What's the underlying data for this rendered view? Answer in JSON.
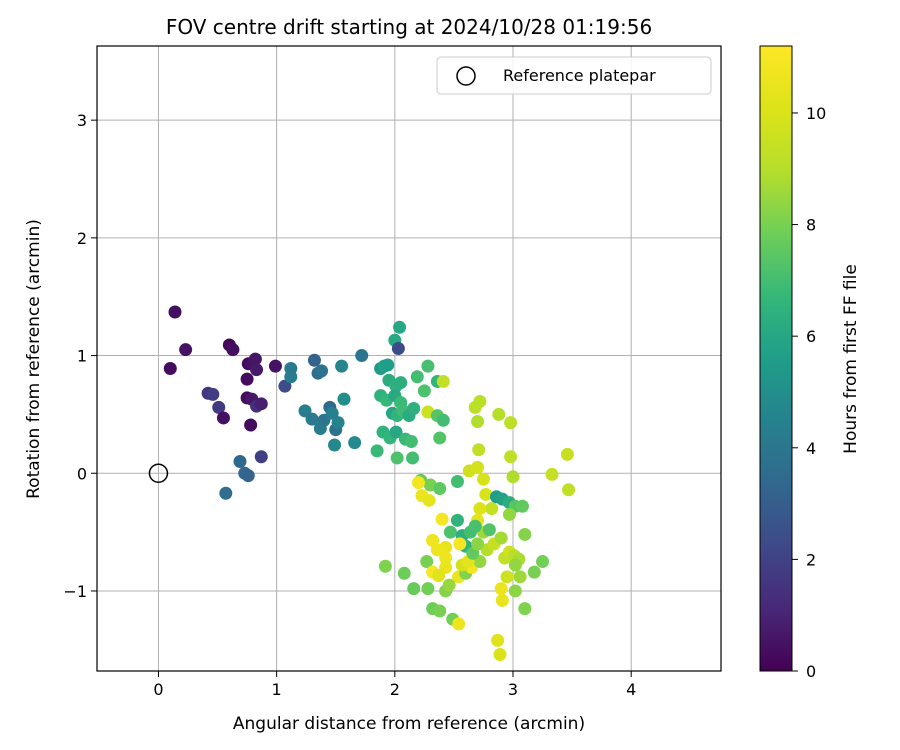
{
  "chart_data": {
    "type": "scatter",
    "title": "FOV centre drift starting at 2024/10/28 01:19:56",
    "xlabel": "Angular distance from reference (arcmin)",
    "ylabel": "Rotation from reference (arcmin)",
    "xlim": [
      -0.52,
      4.76
    ],
    "ylim": [
      -1.68,
      3.63
    ],
    "xticks": [
      0,
      1,
      2,
      3,
      4
    ],
    "xtick_labels": [
      "0",
      "1",
      "2",
      "3",
      "4"
    ],
    "yticks": [
      -1,
      0,
      1,
      2,
      3
    ],
    "ytick_labels": [
      "−1",
      "0",
      "1",
      "2",
      "3"
    ],
    "grid": true,
    "legend": {
      "position": "top-right",
      "entries": [
        "Reference platepar"
      ]
    },
    "colorbar": {
      "label": "Hours from first FF file",
      "colormap": "viridis",
      "range": [
        0,
        11.2
      ],
      "ticks": [
        0,
        2,
        4,
        6,
        8,
        10
      ],
      "tick_labels": [
        "0",
        "2",
        "4",
        "6",
        "8",
        "10"
      ]
    },
    "reference_point": {
      "x": 0,
      "y": 0
    },
    "points": [
      {
        "x": 0.14,
        "y": 1.37,
        "h": 0.4
      },
      {
        "x": 0.23,
        "y": 1.05,
        "h": 0.5
      },
      {
        "x": 0.1,
        "y": 0.89,
        "h": 0.3
      },
      {
        "x": 0.6,
        "y": 1.09,
        "h": 0.2
      },
      {
        "x": 0.63,
        "y": 1.05,
        "h": 0.4
      },
      {
        "x": 0.76,
        "y": 0.93,
        "h": 0.3
      },
      {
        "x": 0.8,
        "y": 0.93,
        "h": 0.5
      },
      {
        "x": 0.82,
        "y": 0.97,
        "h": 0.6
      },
      {
        "x": 0.83,
        "y": 0.88,
        "h": 0.7
      },
      {
        "x": 0.75,
        "y": 0.8,
        "h": 0.3
      },
      {
        "x": 0.99,
        "y": 0.91,
        "h": 0.5
      },
      {
        "x": 0.42,
        "y": 0.68,
        "h": 1.6
      },
      {
        "x": 0.46,
        "y": 0.67,
        "h": 1.8
      },
      {
        "x": 0.51,
        "y": 0.56,
        "h": 1.7
      },
      {
        "x": 0.55,
        "y": 0.47,
        "h": 0.4
      },
      {
        "x": 0.75,
        "y": 0.64,
        "h": 0.3
      },
      {
        "x": 0.79,
        "y": 0.63,
        "h": 0.6
      },
      {
        "x": 0.83,
        "y": 0.57,
        "h": 1.4
      },
      {
        "x": 0.87,
        "y": 0.59,
        "h": 0.9
      },
      {
        "x": 0.78,
        "y": 0.41,
        "h": 0.3
      },
      {
        "x": 0.87,
        "y": 0.14,
        "h": 1.9
      },
      {
        "x": 0.69,
        "y": 0.1,
        "h": 3.4
      },
      {
        "x": 0.73,
        "y": 0.0,
        "h": 3.3
      },
      {
        "x": 0.76,
        "y": -0.02,
        "h": 3.2
      },
      {
        "x": 0.57,
        "y": -0.17,
        "h": 3.6
      },
      {
        "x": 1.07,
        "y": 0.74,
        "h": 2.4
      },
      {
        "x": 1.12,
        "y": 0.89,
        "h": 4.1
      },
      {
        "x": 1.12,
        "y": 0.82,
        "h": 4.2
      },
      {
        "x": 1.32,
        "y": 0.96,
        "h": 3.2
      },
      {
        "x": 1.35,
        "y": 0.85,
        "h": 3.6
      },
      {
        "x": 1.38,
        "y": 0.87,
        "h": 3.8
      },
      {
        "x": 1.55,
        "y": 0.91,
        "h": 4.6
      },
      {
        "x": 1.72,
        "y": 1.0,
        "h": 3.9
      },
      {
        "x": 1.24,
        "y": 0.53,
        "h": 4.3
      },
      {
        "x": 1.3,
        "y": 0.46,
        "h": 4.1
      },
      {
        "x": 1.37,
        "y": 0.38,
        "h": 4.2
      },
      {
        "x": 1.4,
        "y": 0.45,
        "h": 3.9
      },
      {
        "x": 1.45,
        "y": 0.56,
        "h": 3.5
      },
      {
        "x": 1.47,
        "y": 0.51,
        "h": 4.4
      },
      {
        "x": 1.5,
        "y": 0.37,
        "h": 3.8
      },
      {
        "x": 1.52,
        "y": 0.43,
        "h": 4.5
      },
      {
        "x": 1.57,
        "y": 0.63,
        "h": 4.9
      },
      {
        "x": 1.49,
        "y": 0.24,
        "h": 4.7
      },
      {
        "x": 1.66,
        "y": 0.26,
        "h": 4.8
      },
      {
        "x": 1.88,
        "y": 0.89,
        "h": 5.4
      },
      {
        "x": 1.91,
        "y": 0.91,
        "h": 5.8
      },
      {
        "x": 1.94,
        "y": 0.92,
        "h": 5.6
      },
      {
        "x": 2.0,
        "y": 1.13,
        "h": 6.1
      },
      {
        "x": 2.04,
        "y": 1.24,
        "h": 6.0
      },
      {
        "x": 2.03,
        "y": 1.06,
        "h": 2.3
      },
      {
        "x": 1.95,
        "y": 0.79,
        "h": 6.2
      },
      {
        "x": 2.01,
        "y": 0.74,
        "h": 6.4
      },
      {
        "x": 2.05,
        "y": 0.77,
        "h": 6.3
      },
      {
        "x": 1.88,
        "y": 0.66,
        "h": 6.5
      },
      {
        "x": 1.93,
        "y": 0.62,
        "h": 6.7
      },
      {
        "x": 2.0,
        "y": 0.66,
        "h": 6.1
      },
      {
        "x": 2.05,
        "y": 0.6,
        "h": 6.8
      },
      {
        "x": 1.98,
        "y": 0.51,
        "h": 5.9
      },
      {
        "x": 2.02,
        "y": 0.49,
        "h": 6.6
      },
      {
        "x": 2.07,
        "y": 0.53,
        "h": 6.9
      },
      {
        "x": 2.12,
        "y": 0.49,
        "h": 6.2
      },
      {
        "x": 2.16,
        "y": 0.55,
        "h": 6.4
      },
      {
        "x": 2.19,
        "y": 0.82,
        "h": 7.0
      },
      {
        "x": 2.28,
        "y": 0.91,
        "h": 7.1
      },
      {
        "x": 2.25,
        "y": 0.7,
        "h": 7.2
      },
      {
        "x": 2.36,
        "y": 0.78,
        "h": 6.6
      },
      {
        "x": 2.41,
        "y": 0.78,
        "h": 9.3
      },
      {
        "x": 1.9,
        "y": 0.35,
        "h": 6.5
      },
      {
        "x": 1.96,
        "y": 0.3,
        "h": 6.6
      },
      {
        "x": 2.01,
        "y": 0.35,
        "h": 6.0
      },
      {
        "x": 2.09,
        "y": 0.29,
        "h": 6.8
      },
      {
        "x": 2.14,
        "y": 0.27,
        "h": 7.0
      },
      {
        "x": 2.02,
        "y": 0.13,
        "h": 7.2
      },
      {
        "x": 2.15,
        "y": 0.13,
        "h": 7.0
      },
      {
        "x": 1.85,
        "y": 0.19,
        "h": 6.8
      },
      {
        "x": 2.28,
        "y": 0.52,
        "h": 9.6
      },
      {
        "x": 2.36,
        "y": 0.49,
        "h": 7.4
      },
      {
        "x": 2.41,
        "y": 0.45,
        "h": 7.0
      },
      {
        "x": 2.38,
        "y": 0.3,
        "h": 7.3
      },
      {
        "x": 2.68,
        "y": 0.56,
        "h": 9.2
      },
      {
        "x": 2.72,
        "y": 0.61,
        "h": 9.1
      },
      {
        "x": 2.7,
        "y": 0.44,
        "h": 8.9
      },
      {
        "x": 2.88,
        "y": 0.5,
        "h": 9.0
      },
      {
        "x": 2.98,
        "y": 0.43,
        "h": 9.2
      },
      {
        "x": 2.22,
        "y": -0.06,
        "h": 7.7
      },
      {
        "x": 2.3,
        "y": -0.1,
        "h": 8.0
      },
      {
        "x": 2.38,
        "y": -0.13,
        "h": 7.5
      },
      {
        "x": 2.53,
        "y": -0.07,
        "h": 7.0
      },
      {
        "x": 2.63,
        "y": 0.02,
        "h": 9.7
      },
      {
        "x": 2.71,
        "y": 0.2,
        "h": 9.3
      },
      {
        "x": 2.7,
        "y": 0.05,
        "h": 9.8
      },
      {
        "x": 2.75,
        "y": -0.05,
        "h": 9.9
      },
      {
        "x": 2.77,
        "y": -0.18,
        "h": 10.0
      },
      {
        "x": 2.82,
        "y": -0.3,
        "h": 9.4
      },
      {
        "x": 2.72,
        "y": -0.3,
        "h": 10.1
      },
      {
        "x": 2.7,
        "y": -0.4,
        "h": 10.3
      },
      {
        "x": 2.75,
        "y": -0.5,
        "h": 8.6
      },
      {
        "x": 2.86,
        "y": -0.2,
        "h": 5.6
      },
      {
        "x": 2.91,
        "y": -0.22,
        "h": 5.8
      },
      {
        "x": 2.97,
        "y": -0.25,
        "h": 6.2
      },
      {
        "x": 3.02,
        "y": -0.28,
        "h": 7.4
      },
      {
        "x": 3.08,
        "y": -0.28,
        "h": 7.6
      },
      {
        "x": 2.97,
        "y": -0.35,
        "h": 8.4
      },
      {
        "x": 2.98,
        "y": 0.14,
        "h": 9.2
      },
      {
        "x": 3.0,
        "y": -0.03,
        "h": 8.9
      },
      {
        "x": 3.33,
        "y": -0.01,
        "h": 9.4
      },
      {
        "x": 3.46,
        "y": 0.16,
        "h": 9.5
      },
      {
        "x": 3.47,
        "y": -0.14,
        "h": 9.3
      },
      {
        "x": 2.32,
        "y": -0.57,
        "h": 10.7
      },
      {
        "x": 2.4,
        "y": -0.39,
        "h": 10.9
      },
      {
        "x": 2.23,
        "y": -0.19,
        "h": 10.6
      },
      {
        "x": 2.29,
        "y": -0.23,
        "h": 10.4
      },
      {
        "x": 2.2,
        "y": -0.08,
        "h": 10.8
      },
      {
        "x": 2.43,
        "y": -0.63,
        "h": 10.5
      },
      {
        "x": 2.47,
        "y": -0.5,
        "h": 7.2
      },
      {
        "x": 2.53,
        "y": -0.4,
        "h": 6.5
      },
      {
        "x": 2.57,
        "y": -0.53,
        "h": 6.3
      },
      {
        "x": 2.6,
        "y": -0.62,
        "h": 6.5
      },
      {
        "x": 2.64,
        "y": -0.5,
        "h": 7.0
      },
      {
        "x": 2.43,
        "y": -0.72,
        "h": 10.7
      },
      {
        "x": 2.27,
        "y": -0.75,
        "h": 8.0
      },
      {
        "x": 2.32,
        "y": -0.84,
        "h": 11.0
      },
      {
        "x": 2.43,
        "y": -0.8,
        "h": 10.5
      },
      {
        "x": 2.37,
        "y": -0.87,
        "h": 10.2
      },
      {
        "x": 2.54,
        "y": -0.88,
        "h": 10.6
      },
      {
        "x": 2.6,
        "y": -0.85,
        "h": 8.1
      },
      {
        "x": 2.65,
        "y": -0.8,
        "h": 10.8
      },
      {
        "x": 2.72,
        "y": -0.75,
        "h": 8.4
      },
      {
        "x": 2.78,
        "y": -0.65,
        "h": 9.0
      },
      {
        "x": 2.84,
        "y": -0.6,
        "h": 9.5
      },
      {
        "x": 2.9,
        "y": -0.55,
        "h": 8.7
      },
      {
        "x": 2.93,
        "y": -0.72,
        "h": 9.3
      },
      {
        "x": 2.97,
        "y": -0.67,
        "h": 9.7
      },
      {
        "x": 3.01,
        "y": -0.7,
        "h": 9.1
      },
      {
        "x": 3.05,
        "y": -0.73,
        "h": 8.8
      },
      {
        "x": 3.1,
        "y": -0.52,
        "h": 8.2
      },
      {
        "x": 3.02,
        "y": -0.78,
        "h": 8.4
      },
      {
        "x": 3.06,
        "y": -0.88,
        "h": 8.6
      },
      {
        "x": 3.18,
        "y": -0.84,
        "h": 8.0
      },
      {
        "x": 3.25,
        "y": -0.75,
        "h": 7.9
      },
      {
        "x": 2.95,
        "y": -0.88,
        "h": 9.6
      },
      {
        "x": 2.9,
        "y": -0.98,
        "h": 10.6
      },
      {
        "x": 2.91,
        "y": -1.08,
        "h": 10.5
      },
      {
        "x": 3.02,
        "y": -1.0,
        "h": 8.3
      },
      {
        "x": 3.1,
        "y": -1.15,
        "h": 8.1
      },
      {
        "x": 2.87,
        "y": -1.42,
        "h": 10.2
      },
      {
        "x": 2.89,
        "y": -1.54,
        "h": 10.0
      },
      {
        "x": 1.92,
        "y": -0.79,
        "h": 8.1
      },
      {
        "x": 2.08,
        "y": -0.85,
        "h": 7.8
      },
      {
        "x": 2.16,
        "y": -0.98,
        "h": 7.7
      },
      {
        "x": 2.28,
        "y": -0.98,
        "h": 7.9
      },
      {
        "x": 2.32,
        "y": -1.15,
        "h": 7.8
      },
      {
        "x": 2.38,
        "y": -1.17,
        "h": 8.0
      },
      {
        "x": 2.43,
        "y": -1.0,
        "h": 8.2
      },
      {
        "x": 2.46,
        "y": -0.95,
        "h": 8.5
      },
      {
        "x": 2.49,
        "y": -1.24,
        "h": 7.9
      },
      {
        "x": 2.54,
        "y": -1.28,
        "h": 10.7
      },
      {
        "x": 2.57,
        "y": -0.78,
        "h": 9.8
      },
      {
        "x": 2.62,
        "y": -0.75,
        "h": 10.3
      },
      {
        "x": 2.66,
        "y": -0.68,
        "h": 7.6
      },
      {
        "x": 2.7,
        "y": -0.6,
        "h": 8.3
      },
      {
        "x": 2.68,
        "y": -0.45,
        "h": 7.1
      },
      {
        "x": 2.8,
        "y": -0.48,
        "h": 7.3
      },
      {
        "x": 2.55,
        "y": -0.6,
        "h": 10.9
      },
      {
        "x": 2.36,
        "y": -0.65,
        "h": 10.7
      }
    ]
  }
}
